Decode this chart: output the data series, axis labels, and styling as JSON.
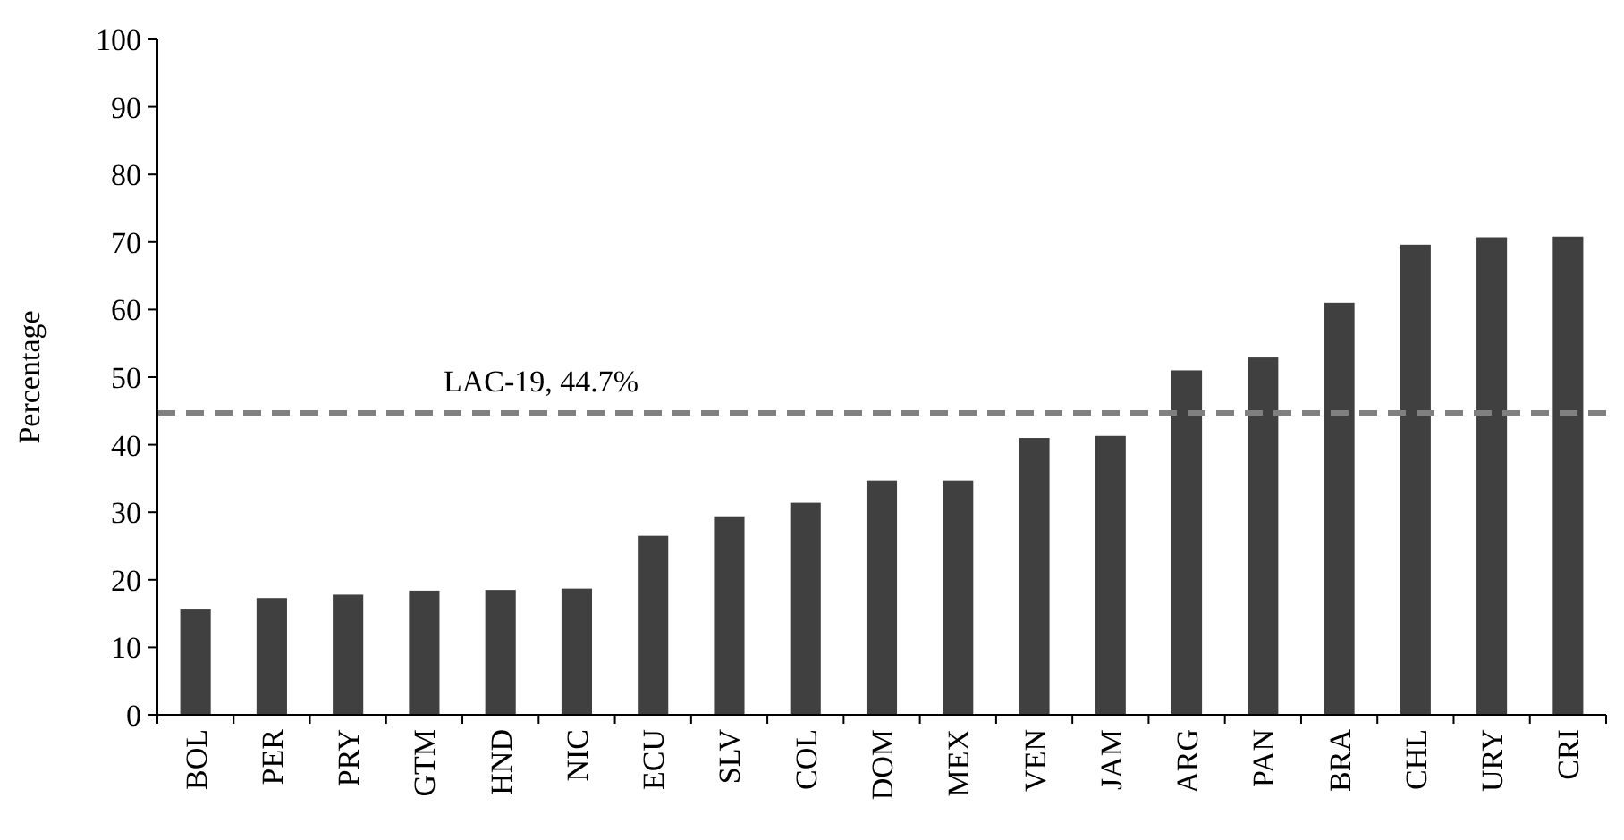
{
  "chart_data": {
    "type": "bar",
    "ylabel": "Percentage",
    "categories": [
      "BOL",
      "PER",
      "PRY",
      "GTM",
      "HND",
      "NIC",
      "ECU",
      "SLV",
      "COL",
      "DOM",
      "MEX",
      "VEN",
      "JAM",
      "ARG",
      "PAN",
      "BRA",
      "CHL",
      "URY",
      "CRI"
    ],
    "values": [
      15.6,
      17.3,
      17.8,
      18.4,
      18.5,
      18.7,
      26.5,
      29.4,
      31.4,
      34.7,
      34.7,
      41,
      41.3,
      51,
      52.9,
      61,
      69.6,
      70.7,
      70.8
    ],
    "color": "#404040",
    "ylim": [
      0,
      100
    ],
    "yticks": [
      0,
      10,
      20,
      30,
      40,
      50,
      60,
      70,
      80,
      90,
      100
    ],
    "ref_lines": [
      {
        "axis": "y",
        "value": 44.7,
        "label": "LAC-19, 44.7%",
        "color": "#808080",
        "line_style": "dashed"
      }
    ],
    "grid": false
  }
}
